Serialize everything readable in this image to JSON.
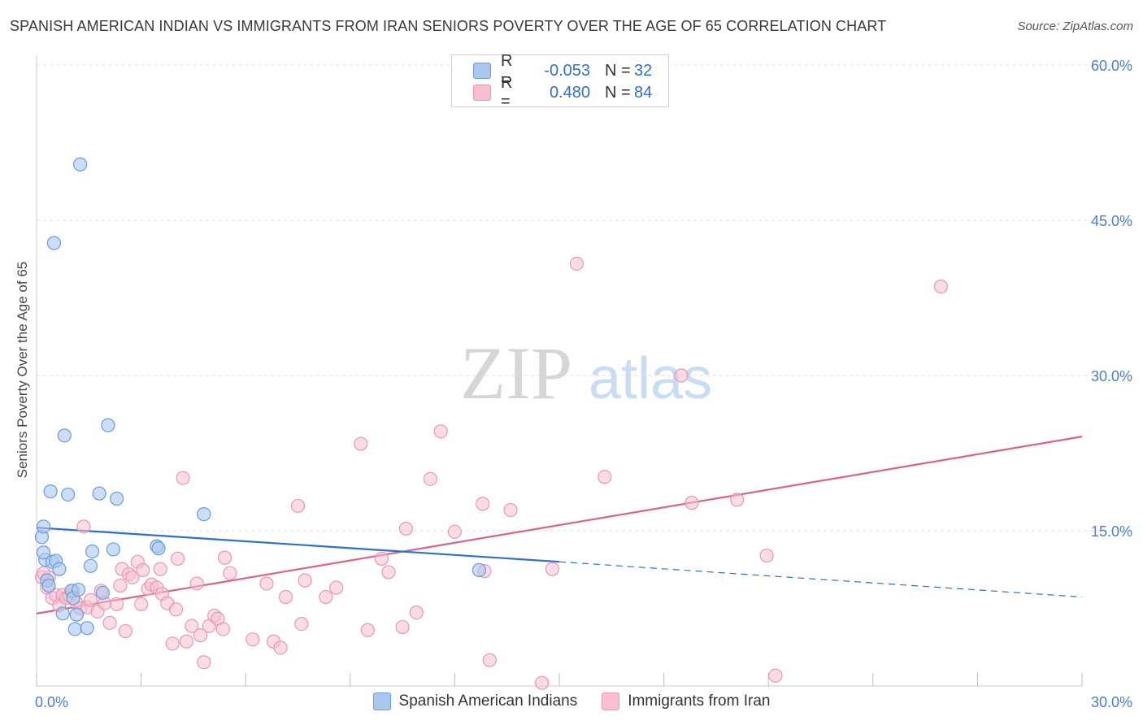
{
  "title": "SPANISH AMERICAN INDIAN VS IMMIGRANTS FROM IRAN SENIORS POVERTY OVER THE AGE OF 65 CORRELATION CHART",
  "source": "Source: ZipAtlas.com",
  "watermark": {
    "zip": "ZIP",
    "atlas": "atlas"
  },
  "legend": {
    "r_label": "R =",
    "n_label": "N =",
    "series1": {
      "r": "-0.053",
      "n": "32"
    },
    "series2": {
      "r": "0.480",
      "n": "84"
    }
  },
  "bottom_legend": {
    "series1": "Spanish American Indians",
    "series2": "Immigrants from Iran"
  },
  "colors": {
    "blue_fill": "#aac8ef",
    "blue_stroke": "#6b9bd8",
    "blue_line": "#2d6fcd",
    "pink_fill": "#f7bfd0",
    "pink_stroke": "#e899b2",
    "pink_line": "#e0608c",
    "tick_text": "#4a7fd1",
    "grid": "#dddddd"
  },
  "chart_data": {
    "type": "scatter",
    "title": "SPANISH AMERICAN INDIAN VS IMMIGRANTS FROM IRAN SENIORS POVERTY OVER THE AGE OF 65 CORRELATION CHART",
    "xlabel": "",
    "ylabel": "Seniors Poverty Over the Age of 65",
    "xlim": [
      0,
      30
    ],
    "ylim": [
      0,
      60
    ],
    "x_tick_labels": [
      "0.0%",
      "30.0%"
    ],
    "y_ticks": [
      15,
      30,
      45,
      60
    ],
    "y_tick_labels": [
      "15.0%",
      "30.0%",
      "45.0%",
      "60.0%"
    ],
    "grid": true,
    "legend_position": "top-center",
    "series": [
      {
        "name": "Spanish American Indians",
        "points": [
          [
            0.15,
            14.4
          ],
          [
            0.2,
            15.4
          ],
          [
            0.25,
            12.2
          ],
          [
            0.3,
            10.2
          ],
          [
            0.35,
            9.7
          ],
          [
            0.4,
            18.8
          ],
          [
            0.45,
            12.0
          ],
          [
            0.5,
            42.8
          ],
          [
            0.55,
            12.1
          ],
          [
            0.65,
            11.3
          ],
          [
            0.75,
            7.0
          ],
          [
            0.8,
            24.2
          ],
          [
            0.9,
            18.5
          ],
          [
            1.0,
            9.2
          ],
          [
            1.05,
            8.5
          ],
          [
            1.1,
            5.5
          ],
          [
            1.15,
            6.9
          ],
          [
            1.2,
            9.3
          ],
          [
            1.25,
            50.4
          ],
          [
            1.45,
            5.6
          ],
          [
            1.55,
            11.6
          ],
          [
            1.6,
            13.0
          ],
          [
            1.8,
            18.6
          ],
          [
            1.9,
            9.0
          ],
          [
            2.05,
            25.2
          ],
          [
            2.2,
            13.2
          ],
          [
            2.3,
            18.1
          ],
          [
            3.45,
            13.5
          ],
          [
            3.5,
            13.3
          ],
          [
            4.8,
            16.6
          ],
          [
            12.7,
            11.2
          ],
          [
            0.2,
            12.9
          ]
        ],
        "trend": {
          "x": [
            0,
            15
          ],
          "y": [
            15.3,
            12.0
          ],
          "dashed_to": [
            30,
            8.6
          ]
        }
      },
      {
        "name": "Immigrants from Iran",
        "points": [
          [
            0.15,
            10.5
          ],
          [
            0.3,
            9.5
          ],
          [
            0.35,
            10.5
          ],
          [
            0.45,
            8.5
          ],
          [
            0.55,
            8.8
          ],
          [
            0.65,
            7.8
          ],
          [
            0.75,
            8.8
          ],
          [
            0.85,
            8.5
          ],
          [
            0.95,
            8.7
          ],
          [
            1.05,
            9.2
          ],
          [
            1.15,
            8.0
          ],
          [
            1.25,
            7.5
          ],
          [
            1.35,
            15.4
          ],
          [
            1.45,
            7.6
          ],
          [
            1.55,
            8.3
          ],
          [
            1.75,
            7.2
          ],
          [
            1.85,
            9.2
          ],
          [
            1.95,
            8.0
          ],
          [
            2.1,
            6.1
          ],
          [
            2.3,
            7.9
          ],
          [
            2.4,
            9.7
          ],
          [
            2.45,
            11.3
          ],
          [
            2.55,
            5.3
          ],
          [
            2.65,
            10.8
          ],
          [
            2.75,
            10.5
          ],
          [
            2.9,
            12.0
          ],
          [
            3.0,
            7.9
          ],
          [
            3.05,
            11.2
          ],
          [
            3.2,
            9.4
          ],
          [
            3.3,
            9.8
          ],
          [
            3.45,
            9.5
          ],
          [
            3.55,
            11.3
          ],
          [
            3.6,
            8.9
          ],
          [
            3.75,
            8.0
          ],
          [
            3.9,
            4.1
          ],
          [
            4.0,
            7.4
          ],
          [
            4.05,
            12.3
          ],
          [
            4.2,
            20.1
          ],
          [
            4.3,
            4.3
          ],
          [
            4.45,
            5.8
          ],
          [
            4.6,
            9.9
          ],
          [
            4.7,
            4.9
          ],
          [
            4.8,
            2.3
          ],
          [
            4.95,
            5.8
          ],
          [
            5.1,
            6.8
          ],
          [
            5.2,
            6.5
          ],
          [
            5.35,
            5.5
          ],
          [
            5.4,
            12.4
          ],
          [
            5.55,
            10.9
          ],
          [
            6.2,
            4.5
          ],
          [
            6.6,
            9.9
          ],
          [
            6.8,
            4.3
          ],
          [
            7.0,
            3.7
          ],
          [
            7.15,
            8.6
          ],
          [
            7.5,
            17.4
          ],
          [
            7.6,
            6.0
          ],
          [
            7.7,
            10.2
          ],
          [
            8.3,
            8.6
          ],
          [
            8.6,
            9.5
          ],
          [
            9.3,
            23.4
          ],
          [
            9.5,
            5.4
          ],
          [
            9.9,
            12.3
          ],
          [
            10.1,
            11.0
          ],
          [
            10.5,
            5.7
          ],
          [
            10.6,
            15.2
          ],
          [
            10.9,
            7.1
          ],
          [
            11.3,
            20.0
          ],
          [
            11.6,
            24.6
          ],
          [
            12.0,
            14.9
          ],
          [
            12.8,
            17.6
          ],
          [
            12.85,
            11.1
          ],
          [
            13.0,
            2.5
          ],
          [
            13.6,
            17.0
          ],
          [
            14.5,
            0.3
          ],
          [
            14.8,
            11.3
          ],
          [
            15.5,
            40.8
          ],
          [
            16.3,
            20.2
          ],
          [
            18.5,
            30.0
          ],
          [
            18.8,
            17.7
          ],
          [
            20.1,
            18.0
          ],
          [
            20.95,
            12.6
          ],
          [
            21.2,
            1.0
          ],
          [
            25.95,
            38.6
          ],
          [
            0.2,
            10.9
          ]
        ],
        "trend": {
          "x": [
            0,
            30
          ],
          "y": [
            7.0,
            24.1
          ]
        }
      }
    ]
  }
}
